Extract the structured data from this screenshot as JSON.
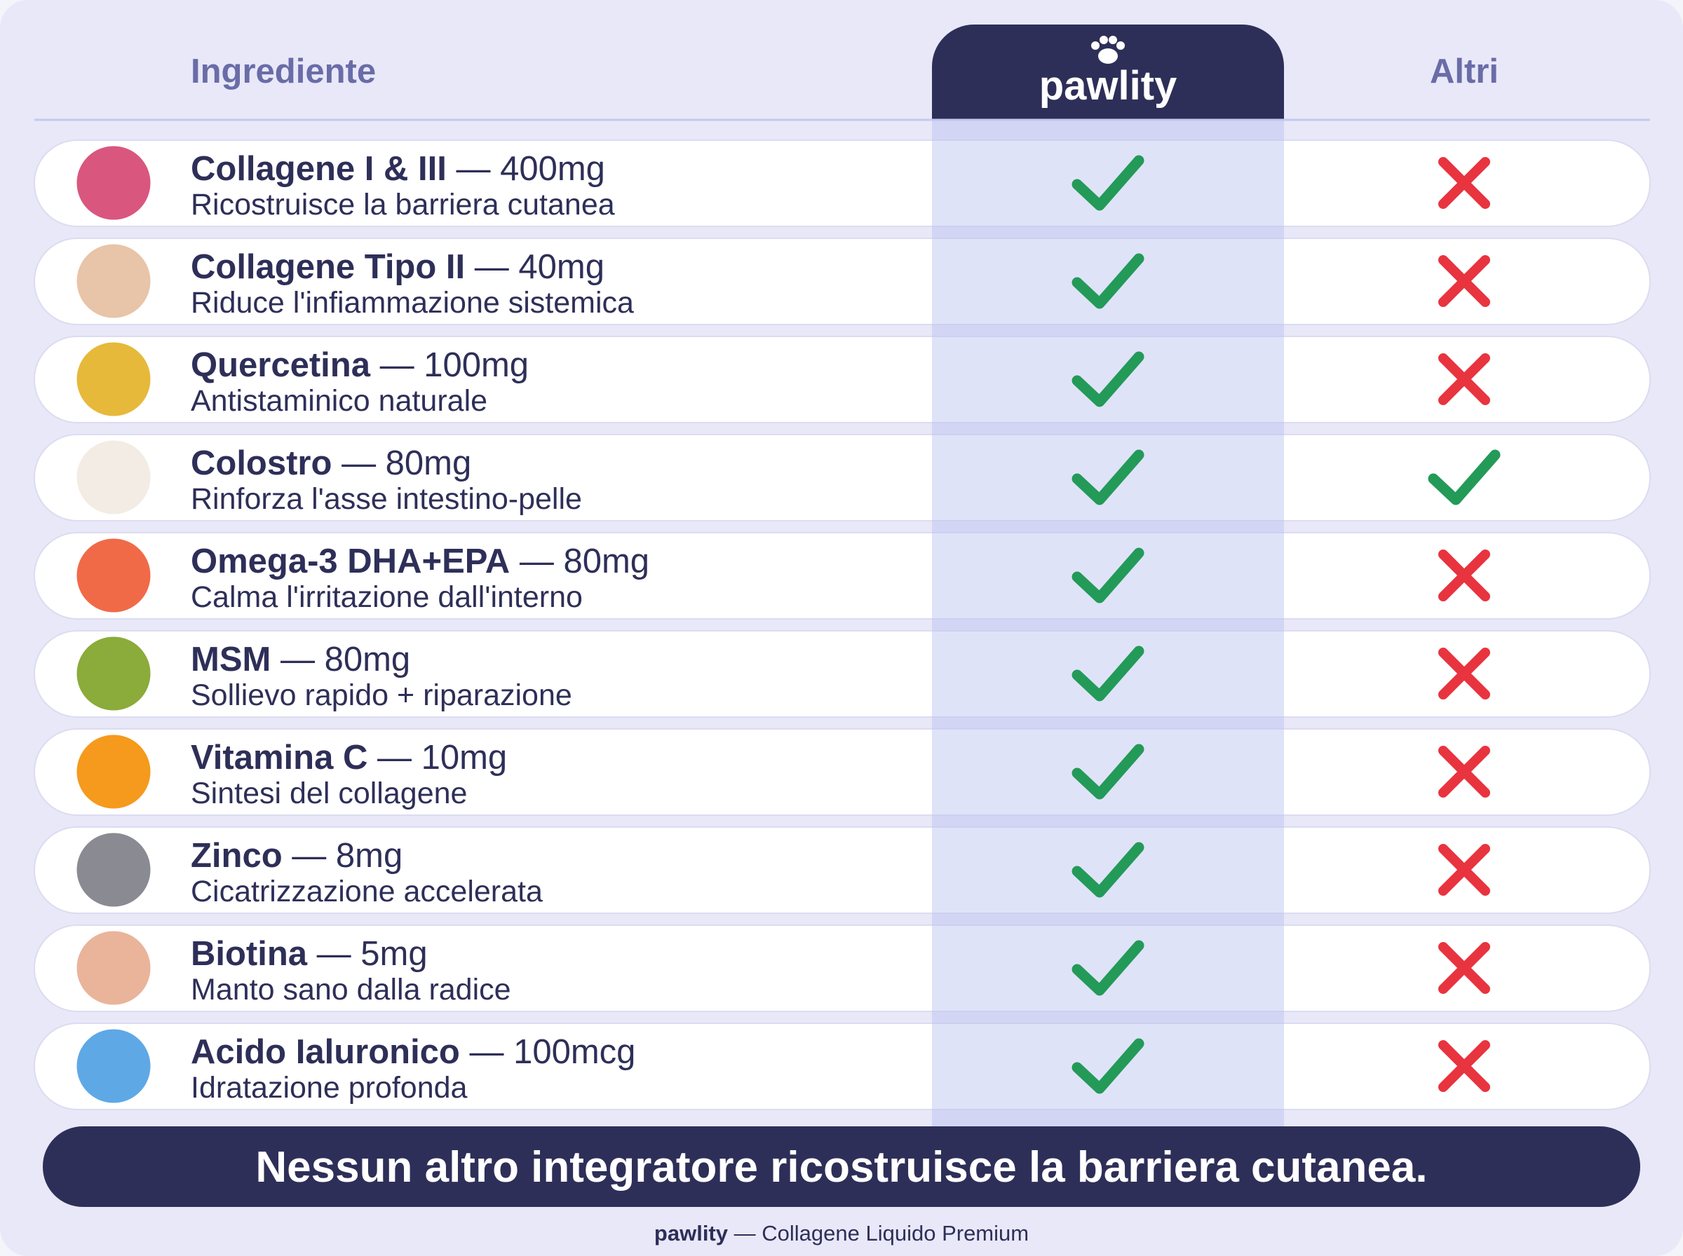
{
  "header": {
    "ingredient_label": "Ingrediente",
    "brand": "pawlity",
    "others_label": "Altri"
  },
  "rows": [
    {
      "name": "Collagene I & III",
      "dose": "— 400mg",
      "description": "Ricostruisce la barriera cutanea",
      "pawlity": true,
      "altri": false
    },
    {
      "name": "Collagene Tipo II",
      "dose": "— 40mg",
      "description": "Riduce l'infiammazione sistemica",
      "pawlity": true,
      "altri": false
    },
    {
      "name": "Quercetina",
      "dose": "— 100mg",
      "description": "Antistaminico naturale",
      "pawlity": true,
      "altri": false
    },
    {
      "name": "Colostro",
      "dose": "— 80mg",
      "description": "Rinforza l'asse intestino-pelle",
      "pawlity": true,
      "altri": true
    },
    {
      "name": "Omega-3 DHA+EPA",
      "dose": "— 80mg",
      "description": "Calma l'irritazione dall'interno",
      "pawlity": true,
      "altri": false
    },
    {
      "name": "MSM",
      "dose": "— 80mg",
      "description": "Sollievo rapido + riparazione",
      "pawlity": true,
      "altri": false
    },
    {
      "name": "Vitamina C",
      "dose": "— 10mg",
      "description": "Sintesi del collagene",
      "pawlity": true,
      "altri": false
    },
    {
      "name": "Zinco",
      "dose": "— 8mg",
      "description": "Cicatrizzazione accelerata",
      "pawlity": true,
      "altri": false
    },
    {
      "name": "Biotina",
      "dose": "— 5mg",
      "description": "Manto sano dalla radice",
      "pawlity": true,
      "altri": false
    },
    {
      "name": "Acido Ialuronico",
      "dose": "— 100mcg",
      "description": "Idratazione profonda",
      "pawlity": true,
      "altri": false
    }
  ],
  "banner": "Nessun altro integratore ricostruisce la barriera cutanea.",
  "footer": {
    "brand": "pawlity",
    "tagline": "— Collagene Liquido Premium"
  }
}
